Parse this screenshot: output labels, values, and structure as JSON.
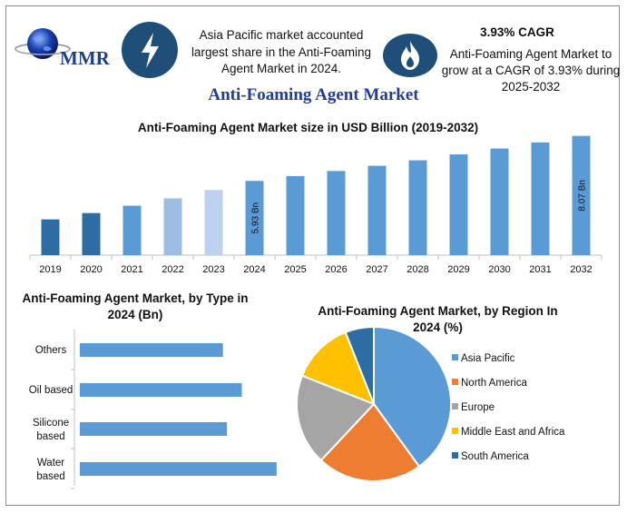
{
  "logo": {
    "text": "MMR"
  },
  "header": {
    "left_info": "Asia Pacific market accounted largest share in the Anti-Foaming Agent Market in 2024.",
    "cagr_title": "3.93% CAGR",
    "right_info": "Anti-Foaming Agent Market to grow at a CAGR of 3.93% during 2025-2032",
    "bolt_icon": "lightning-bolt-icon",
    "flame_icon": "flame-icon"
  },
  "main_title": "Anti-Foaming Agent Market",
  "colors": {
    "navy": "#1f4e79",
    "bar_dark": "#2e6da4",
    "bar_light": "#9dbde3",
    "bar_lighter": "#bcd2ee",
    "bar_main": "#5b9bd5",
    "pie_asia": "#5b9bd5",
    "pie_na": "#ed7d31",
    "pie_eu": "#a5a5a5",
    "pie_mea": "#ffc000",
    "pie_sa": "#2e6da4"
  },
  "chart_data": [
    {
      "type": "bar",
      "title": "Anti-Foaming Agent Market size in USD Billion (2019-2032)",
      "categories": [
        "2019",
        "2020",
        "2021",
        "2022",
        "2023",
        "2024",
        "2025",
        "2026",
        "2027",
        "2028",
        "2029",
        "2030",
        "2031",
        "2032"
      ],
      "values": [
        4.1,
        4.4,
        4.75,
        5.1,
        5.5,
        5.93,
        6.16,
        6.4,
        6.65,
        6.91,
        7.19,
        7.47,
        7.76,
        8.07
      ],
      "data_labels": {
        "2024": "5.93 Bn",
        "2032": "8.07 Bn"
      },
      "ylim": [
        2.4,
        8.1
      ]
    },
    {
      "type": "bar",
      "orientation": "horizontal",
      "title": "Anti-Foaming Agent Market, by Type in 2024 (Bn)",
      "categories": [
        "Others",
        "Oil based",
        "Silicone based",
        "Water based"
      ],
      "values": [
        1.44,
        1.63,
        1.48,
        1.98
      ],
      "xlim": [
        0,
        2.1
      ]
    },
    {
      "type": "pie",
      "title": "Anti-Foaming Agent Market, by Region In 2024 (%)",
      "labels": [
        "Asia Pacific",
        "North America",
        "Europe",
        "Middle East and Africa",
        "South America"
      ],
      "values": [
        40,
        22,
        19,
        13,
        6
      ]
    }
  ]
}
